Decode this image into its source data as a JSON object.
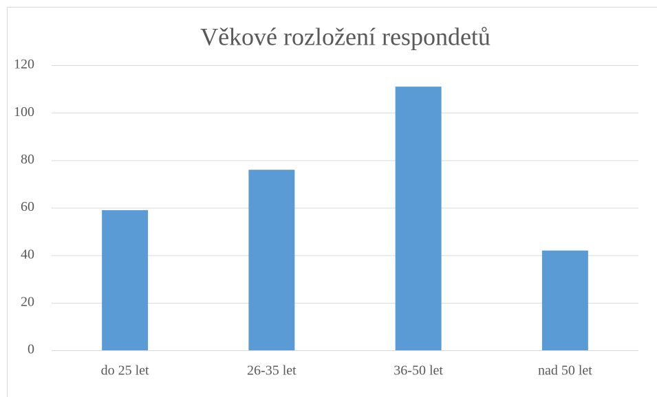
{
  "chart_data": {
    "type": "bar",
    "title": "Věkové rozložení respondetů",
    "categories": [
      "do 25 let",
      "26-35 let",
      "36-50 let",
      "nad 50 let"
    ],
    "values": [
      59,
      76,
      111,
      42
    ],
    "color": "#5b9bd5",
    "ylim": [
      0,
      120
    ],
    "yticks": [
      0,
      20,
      40,
      60,
      80,
      100,
      120
    ],
    "grid": true
  }
}
